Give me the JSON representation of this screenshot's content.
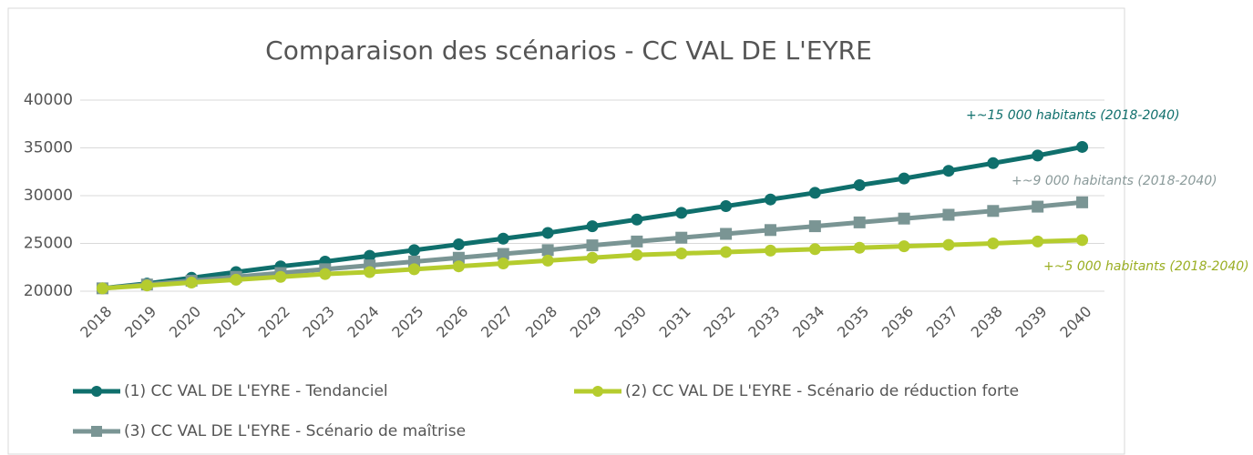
{
  "chart_data": {
    "type": "line",
    "title": "Comparaison des scénarios - CC VAL DE L'EYRE",
    "categories": [
      "2018",
      "2019",
      "2020",
      "2021",
      "2022",
      "2023",
      "2024",
      "2025",
      "2026",
      "2027",
      "2028",
      "2029",
      "2030",
      "2031",
      "2032",
      "2033",
      "2034",
      "2035",
      "2036",
      "2037",
      "2038",
      "2039",
      "2040"
    ],
    "series": [
      {
        "name": "(1) CC VAL DE L'EYRE - Tendanciel",
        "color": "#0f6f6c",
        "marker": "circle",
        "values": [
          20300,
          20800,
          21400,
          22000,
          22600,
          23100,
          23700,
          24300,
          24900,
          25500,
          26100,
          26800,
          27500,
          28200,
          28900,
          29600,
          30300,
          31100,
          31800,
          32600,
          33400,
          34200,
          35100
        ]
      },
      {
        "name": "(2) CC VAL DE L'EYRE - Scénario de réduction forte",
        "color": "#b5cc2e",
        "marker": "circle",
        "values": [
          20300,
          20600,
          20900,
          21200,
          21500,
          21800,
          22000,
          22300,
          22600,
          22900,
          23200,
          23500,
          23800,
          23950,
          24100,
          24250,
          24400,
          24550,
          24700,
          24850,
          25000,
          25200,
          25350
        ]
      },
      {
        "name": "(3) CC VAL DE L'EYRE - Scénario de maîtrise",
        "color": "#7a9594",
        "marker": "square",
        "values": [
          20300,
          20700,
          21100,
          21500,
          21900,
          22300,
          22700,
          23100,
          23500,
          23900,
          24300,
          24800,
          25200,
          25600,
          26000,
          26400,
          26800,
          27200,
          27600,
          28000,
          28400,
          28850,
          29300
        ]
      }
    ],
    "annotations": [
      {
        "text": "+~15 000 habitants (2018-2040)",
        "color": "#0f6f6c"
      },
      {
        "text": "+~9 000 habitants (2018-2040)",
        "color": "#8a9a9a"
      },
      {
        "text": "+~5 000 habitants (2018-2040)",
        "color": "#9aae22"
      }
    ],
    "ylim": [
      20000,
      40000
    ],
    "yticks": [
      20000,
      25000,
      30000,
      35000,
      40000
    ],
    "grid": true,
    "legend": "bottom"
  }
}
